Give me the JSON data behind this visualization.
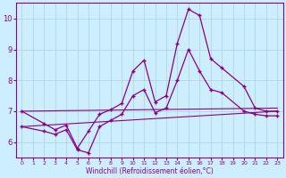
{
  "xlabel": "Windchill (Refroidissement éolien,°C)",
  "bg_color": "#cceeff",
  "line_color": "#880088",
  "xlim": [
    -0.5,
    23.5
  ],
  "ylim": [
    5.5,
    10.5
  ],
  "yticks": [
    6,
    7,
    8,
    9,
    10
  ],
  "xticks": [
    0,
    1,
    2,
    3,
    4,
    5,
    6,
    7,
    8,
    9,
    10,
    11,
    12,
    13,
    14,
    15,
    16,
    17,
    18,
    19,
    20,
    21,
    22,
    23
  ],
  "series": {
    "max": {
      "x": [
        0,
        2,
        3,
        4,
        5,
        6,
        7,
        8,
        9,
        10,
        11,
        12,
        13,
        14,
        15,
        16,
        17,
        18,
        20,
        21,
        22,
        23
      ],
      "y": [
        7.0,
        6.6,
        6.4,
        6.55,
        5.8,
        6.35,
        6.9,
        7.05,
        7.25,
        8.3,
        8.65,
        7.3,
        7.5,
        9.2,
        10.3,
        10.1,
        8.7,
        8.4,
        7.8,
        7.1,
        7.0,
        7.0
      ]
    },
    "min": {
      "x": [
        0,
        2,
        3,
        4,
        5,
        6,
        7,
        8,
        9,
        10,
        11,
        12,
        13,
        14,
        15,
        16,
        17,
        18,
        20,
        21,
        22,
        23
      ],
      "y": [
        6.5,
        6.35,
        6.25,
        6.4,
        5.75,
        5.65,
        6.5,
        6.7,
        6.9,
        7.5,
        7.7,
        6.95,
        7.1,
        8.0,
        9.0,
        8.3,
        7.7,
        7.6,
        7.0,
        6.9,
        6.85,
        6.85
      ]
    },
    "upper_linear": {
      "x": [
        0,
        23
      ],
      "y": [
        7.0,
        7.1
      ]
    },
    "lower_linear": {
      "x": [
        0,
        23
      ],
      "y": [
        6.5,
        7.0
      ]
    }
  }
}
